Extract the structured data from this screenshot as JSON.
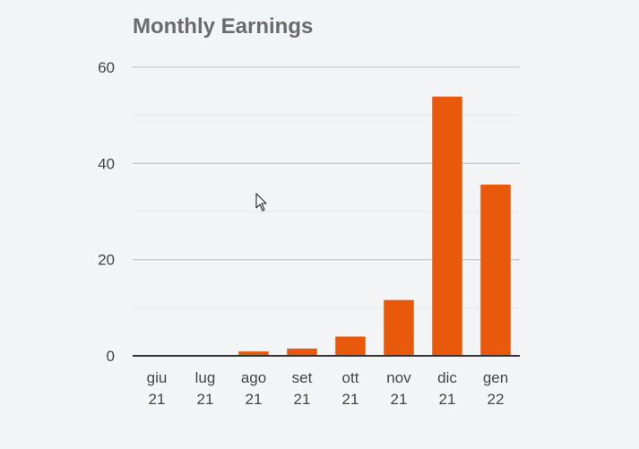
{
  "chart_data": {
    "type": "bar",
    "title": "Monthly Earnings",
    "categories": [
      [
        "giu",
        "21"
      ],
      [
        "lug",
        "21"
      ],
      [
        "ago",
        "21"
      ],
      [
        "set",
        "21"
      ],
      [
        "ott",
        "21"
      ],
      [
        "nov",
        "21"
      ],
      [
        "dic",
        "21"
      ],
      [
        "gen",
        "22"
      ]
    ],
    "values": [
      0,
      0,
      0.9,
      1.5,
      4.0,
      11.6,
      53.9,
      35.6
    ],
    "ylim": [
      0,
      60
    ],
    "yticks": [
      0,
      20,
      40,
      60
    ],
    "minor_yticks": [
      10,
      30,
      50
    ],
    "xlabel": "",
    "ylabel": "",
    "grid": true,
    "legend": "none",
    "colors": {
      "bar": "#e8590c",
      "grid_major": "#c9cacc",
      "grid_minor": "#e6e7e9",
      "axis": "#333333",
      "tick_label": "#444444"
    }
  },
  "cursor": {
    "icon": "mouse-pointer-icon"
  }
}
